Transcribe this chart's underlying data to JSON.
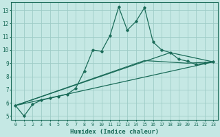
{
  "xlabel": "Humidex (Indice chaleur)",
  "bg_color": "#c5e8e4",
  "grid_color": "#9eccc7",
  "line_color": "#1a6b58",
  "xlim": [
    -0.5,
    23.5
  ],
  "ylim": [
    4.7,
    13.6
  ],
  "xticks": [
    0,
    1,
    2,
    3,
    4,
    5,
    6,
    7,
    8,
    9,
    10,
    11,
    12,
    13,
    14,
    15,
    16,
    17,
    18,
    19,
    20,
    21,
    22,
    23
  ],
  "yticks": [
    5,
    6,
    7,
    8,
    9,
    10,
    11,
    12,
    13
  ],
  "main_x": [
    0,
    1,
    2,
    3,
    4,
    5,
    6,
    7,
    8,
    9,
    10,
    11,
    12,
    13,
    14,
    15,
    16,
    17,
    18,
    19,
    20,
    21,
    22,
    23
  ],
  "main_y": [
    5.8,
    5.0,
    5.9,
    6.2,
    6.35,
    6.5,
    6.65,
    7.1,
    8.4,
    10.0,
    9.9,
    11.1,
    13.25,
    11.5,
    12.15,
    13.2,
    10.6,
    10.0,
    9.8,
    9.3,
    9.15,
    8.9,
    9.0,
    9.1
  ],
  "line2_x": [
    0,
    23
  ],
  "line2_y": [
    5.8,
    9.1
  ],
  "line3_x": [
    0,
    18,
    23
  ],
  "line3_y": [
    5.8,
    9.8,
    9.1
  ],
  "line4_x": [
    0,
    15,
    20,
    23
  ],
  "line4_y": [
    5.8,
    9.2,
    9.0,
    9.1
  ]
}
